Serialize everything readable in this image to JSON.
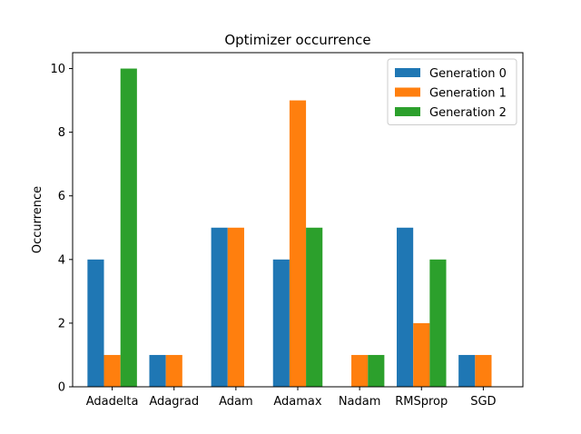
{
  "chart_data": {
    "type": "bar",
    "title": "Optimizer occurrence",
    "xlabel": "",
    "ylabel": "Occurrence",
    "categories": [
      "Adadelta",
      "Adagrad",
      "Adam",
      "Adamax",
      "Nadam",
      "RMSprop",
      "SGD"
    ],
    "series": [
      {
        "name": "Generation 0",
        "color": "#1f77b4",
        "values": [
          4,
          1,
          5,
          4,
          0,
          5,
          1
        ]
      },
      {
        "name": "Generation 1",
        "color": "#ff7f0e",
        "values": [
          1,
          1,
          5,
          9,
          1,
          2,
          1
        ]
      },
      {
        "name": "Generation 2",
        "color": "#2ca02c",
        "values": [
          10,
          0,
          0,
          5,
          1,
          4,
          0
        ]
      }
    ],
    "ylim": [
      0,
      10.5
    ],
    "yticks": [
      0,
      2,
      4,
      6,
      8,
      10
    ],
    "grid": false,
    "legend_position": "top-right"
  }
}
